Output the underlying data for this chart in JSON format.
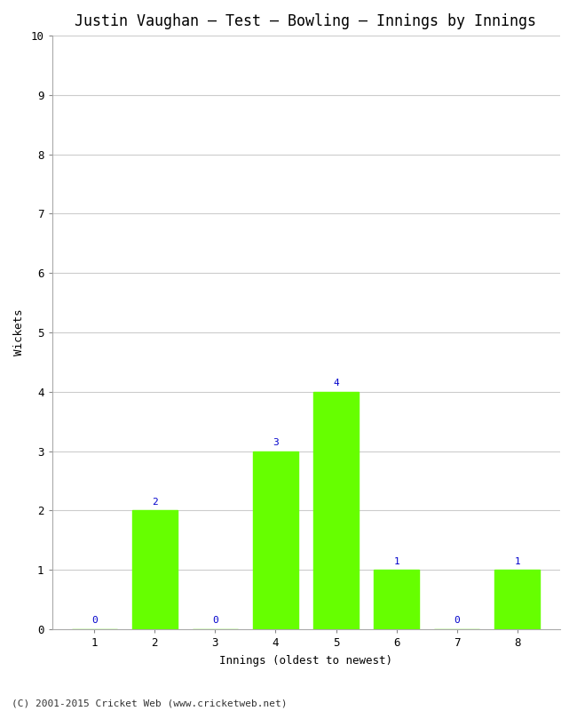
{
  "title": "Justin Vaughan – Test – Bowling – Innings by Innings",
  "innings": [
    1,
    2,
    3,
    4,
    5,
    6,
    7,
    8
  ],
  "wickets": [
    0,
    2,
    0,
    3,
    4,
    1,
    0,
    1
  ],
  "bar_color": "#66ff00",
  "xlabel": "Innings (oldest to newest)",
  "ylabel": "Wickets",
  "ylim": [
    0,
    10
  ],
  "yticks": [
    0,
    1,
    2,
    3,
    4,
    5,
    6,
    7,
    8,
    9,
    10
  ],
  "label_color": "#0000cc",
  "grid_color": "#cccccc",
  "title_fontsize": 12,
  "axis_fontsize": 9,
  "label_fontsize": 8,
  "tick_fontsize": 9,
  "copyright": "(C) 2001-2015 Cricket Web (www.cricketweb.net)",
  "copyright_fontsize": 8,
  "background_color": "#ffffff",
  "font_family": "monospace"
}
